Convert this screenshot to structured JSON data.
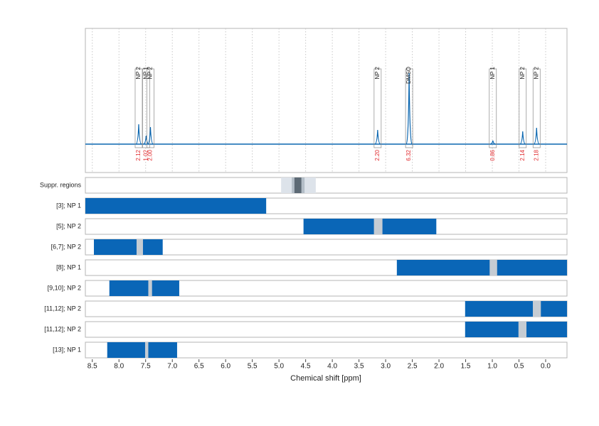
{
  "chart_data": {
    "type": "nmr",
    "x_label": "Chemical shift [ppm]",
    "xlim": [
      8.63,
      -0.4
    ],
    "xticks": [
      8.5,
      {
        "value": 8,
        "label": "8.0"
      },
      7.5,
      {
        "value": 7,
        "label": "7.0"
      },
      6.5,
      {
        "value": 6,
        "label": "6.0"
      },
      5.5,
      {
        "value": 5,
        "label": "5.0"
      },
      4.5,
      {
        "value": 4,
        "label": "4.0"
      },
      3.5,
      {
        "value": 3,
        "label": "3.0"
      },
      2.5,
      {
        "value": 2,
        "label": "2.0"
      },
      1.5,
      {
        "value": 1,
        "label": "1.0"
      },
      0.5,
      {
        "value": 0,
        "label": "0.0"
      }
    ],
    "ylim": [
      0,
      100
    ],
    "grid": true,
    "spectrum_color": "#0a66b0",
    "integral_color": "#e0262a",
    "peaks": [
      {
        "label": "NP 2",
        "ppm": 7.63,
        "height": 28,
        "integral": "2.12"
      },
      {
        "label": "NP 1",
        "ppm": 7.49,
        "height": 12,
        "integral": "1.02"
      },
      {
        "label": "NP 2",
        "ppm": 7.41,
        "height": 24,
        "integral": "2.00"
      },
      {
        "label": "NP 2",
        "ppm": 3.15,
        "height": 20,
        "integral": "2.20"
      },
      {
        "label": "DMSO",
        "ppm": 2.56,
        "height": 100,
        "integral": "6.32"
      },
      {
        "label": "NP 1",
        "ppm": 0.99,
        "height": 5,
        "integral": "0.86"
      },
      {
        "label": "NP 2",
        "ppm": 0.43,
        "height": 18,
        "integral": "2.14"
      },
      {
        "label": "NP 2",
        "ppm": 0.17,
        "height": 23,
        "integral": "2.18"
      }
    ],
    "suppression": {
      "label": "Suppr. regions",
      "bands": [
        {
          "start": 4.96,
          "end": 4.31,
          "color": "#dde3ea"
        },
        {
          "start": 4.76,
          "end": 4.52,
          "color": "#b4bec8"
        },
        {
          "start": 4.71,
          "end": 4.58,
          "color": "#5d6a75"
        }
      ]
    },
    "region_color": "#0a66b7",
    "gap_color": "#c5ccd3",
    "regions": [
      {
        "label": "[3]; NP 1",
        "start": 8.63,
        "end": 5.24,
        "gaps": []
      },
      {
        "label": "[5]; NP 2",
        "start": 4.54,
        "end": 2.05,
        "gaps": [
          [
            3.22,
            3.06
          ]
        ]
      },
      {
        "label": "[6,7]; NP 2",
        "start": 8.47,
        "end": 7.18,
        "gaps": [
          [
            7.67,
            7.55
          ]
        ]
      },
      {
        "label": "[8]; NP 1",
        "start": 2.79,
        "end": -0.4,
        "gaps": [
          [
            1.05,
            0.91
          ]
        ]
      },
      {
        "label": "[9,10]; NP 2",
        "start": 8.18,
        "end": 6.87,
        "gaps": [
          [
            7.45,
            7.38
          ]
        ]
      },
      {
        "label": "[11,12]; NP 2",
        "start": 1.51,
        "end": -0.4,
        "gaps": [
          [
            0.24,
            0.09
          ]
        ]
      },
      {
        "label": "[11,12]; NP 2",
        "start": 1.51,
        "end": -0.4,
        "gaps": [
          [
            0.51,
            0.36
          ]
        ]
      },
      {
        "label": "[13]; NP 1",
        "start": 8.22,
        "end": 6.91,
        "gaps": [
          [
            7.51,
            7.45
          ]
        ]
      }
    ]
  }
}
